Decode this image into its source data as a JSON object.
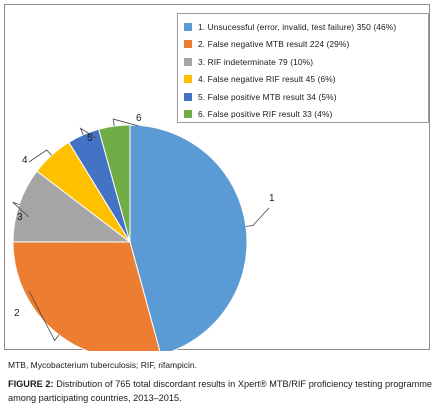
{
  "chart_data": {
    "type": "pie",
    "categories": [
      "1. Unsucessful (error, invalid, test failure) 350 (46%)",
      "2. False negative MTB result 224 (29%)",
      "3. RIF indeterminate 79 (10%)",
      "4. False negative RIF result 45 (6%)",
      "5. False positive MTB result 34 (5%)",
      "6. False positive RIF result 33 (4%)"
    ],
    "values": [
      350,
      224,
      79,
      45,
      34,
      33
    ],
    "slice_labels": [
      "1",
      "2",
      "3",
      "4",
      "5",
      "6"
    ],
    "colors": [
      "#5b9bd5",
      "#ed7d31",
      "#a5a5a5",
      "#ffc000",
      "#4472c4",
      "#70ad47"
    ],
    "start_angle_deg": 0,
    "direction": "clockwise",
    "legend_position": "top-right"
  },
  "footnote": "MTB, Mycobacterium tuberculosis; RIF, rifampicin.",
  "caption": {
    "label": "FIGURE 2:",
    "text": " Distribution of 765 total discordant results in Xpert® MTB/RIF proficiency testing programme among participating countries, 2013–2015."
  }
}
